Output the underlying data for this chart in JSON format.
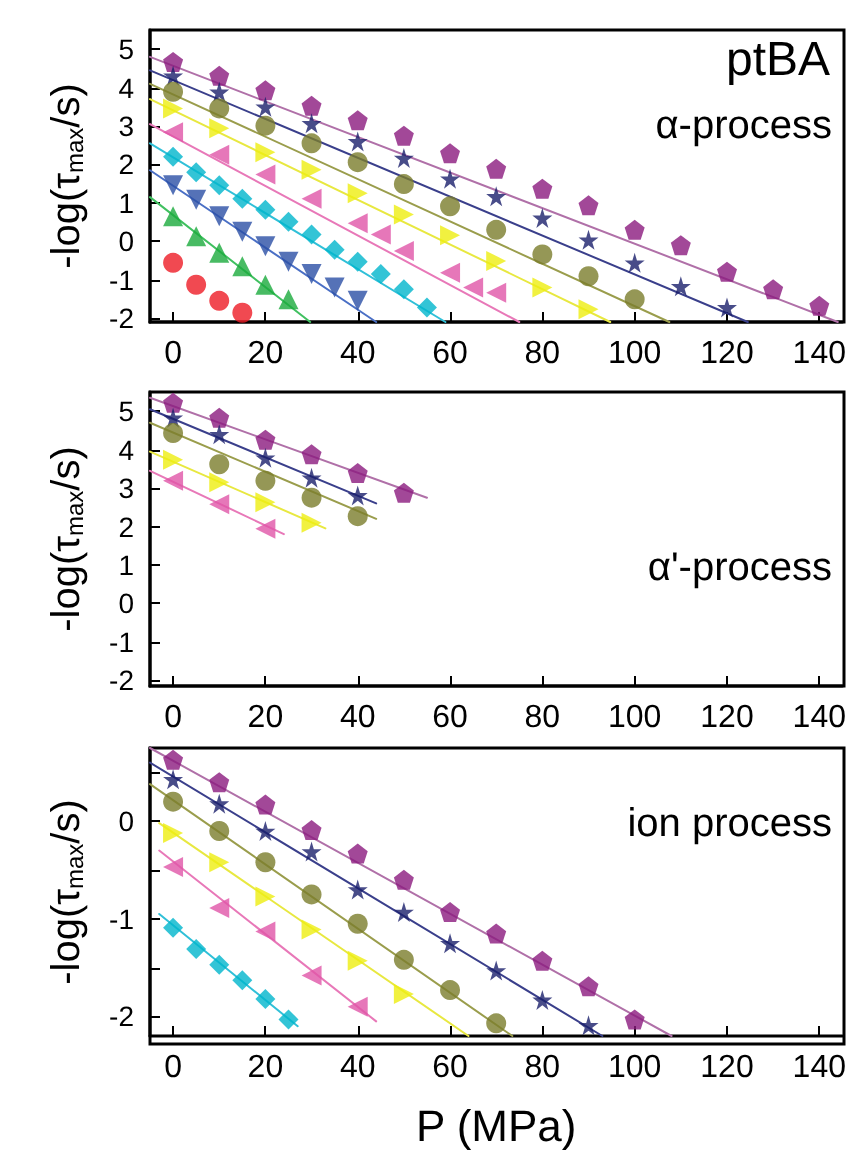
{
  "chart_data": [
    {
      "type": "scatter",
      "title": "ptBA",
      "ylabel": "-log(τ$_{max}$/s)",
      "annotations": [
        "α-process"
      ],
      "xlim": [
        -5,
        145
      ],
      "ylim": [
        -2.1,
        5.5
      ],
      "xticks": [
        0,
        20,
        40,
        60,
        80,
        100,
        120,
        140
      ],
      "yticks": [
        -2,
        -1,
        0,
        1,
        2,
        3,
        4,
        5
      ],
      "grid": false,
      "series": [
        {
          "color": "#8b1a7e",
          "x": [
            0,
            10,
            20,
            30,
            40,
            50,
            60,
            70,
            80,
            90,
            100,
            110,
            120,
            130,
            140
          ],
          "values": [
            4.67,
            4.31,
            3.93,
            3.53,
            3.15,
            2.75,
            2.29,
            1.89,
            1.37,
            0.94,
            0.3,
            -0.1,
            -0.79,
            -1.25,
            -1.68
          ]
        },
        {
          "color": "#1a1f6b",
          "marker": "star",
          "x": [
            0,
            10,
            20,
            30,
            40,
            50,
            60,
            70,
            80,
            90,
            100,
            110,
            120
          ],
          "values": [
            4.31,
            3.89,
            3.5,
            3.07,
            2.6,
            2.17,
            1.63,
            1.17,
            0.61,
            0.04,
            -0.56,
            -1.17,
            -1.72
          ]
        },
        {
          "color": "#7a7d2c",
          "marker": "circle",
          "x": [
            0,
            10,
            20,
            30,
            40,
            50,
            60,
            70,
            80,
            90,
            100
          ],
          "values": [
            3.89,
            3.46,
            3.01,
            2.55,
            2.06,
            1.49,
            0.91,
            0.3,
            -0.34,
            -0.91,
            -1.51
          ]
        },
        {
          "color": "#eeee10",
          "marker": "triangle-right",
          "x": [
            0,
            10,
            20,
            30,
            40,
            50,
            60,
            70,
            80,
            90
          ],
          "values": [
            3.46,
            2.94,
            2.32,
            1.86,
            1.25,
            0.7,
            0.16,
            -0.51,
            -1.2,
            -1.77
          ]
        },
        {
          "color": "#e055a8",
          "marker": "triangle-left",
          "x": [
            0,
            10,
            20,
            30,
            40,
            45,
            50,
            60,
            65,
            70
          ],
          "values": [
            2.84,
            2.25,
            1.74,
            1.11,
            0.47,
            0.18,
            -0.25,
            -0.82,
            -1.2,
            -1.34
          ]
        },
        {
          "color": "#00b5cc",
          "marker": "diamond",
          "x": [
            0,
            5,
            10,
            15,
            20,
            25,
            30,
            35,
            40,
            45,
            50,
            55
          ],
          "values": [
            2.2,
            1.8,
            1.46,
            1.11,
            0.82,
            0.51,
            0.18,
            -0.22,
            -0.53,
            -0.85,
            -1.25,
            -1.72
          ]
        },
        {
          "color": "#2a4fa5",
          "marker": "triangle-down",
          "x": [
            0,
            5,
            10,
            15,
            20,
            25,
            30,
            35,
            40
          ],
          "values": [
            1.46,
            1.08,
            0.65,
            0.25,
            -0.13,
            -0.53,
            -0.85,
            -1.2,
            -1.55
          ]
        },
        {
          "color": "#1aaa3c",
          "marker": "triangle",
          "x": [
            0,
            5,
            10,
            15,
            20,
            25
          ],
          "values": [
            0.65,
            0.13,
            -0.3,
            -0.65,
            -1.13,
            -1.51
          ]
        },
        {
          "color": "#ee1c25",
          "marker": "circle",
          "x": [
            0,
            5,
            10,
            15
          ],
          "values": [
            -0.56,
            -1.13,
            -1.55,
            -1.86
          ]
        },
        {
          "type": "line",
          "color": "#b070a8",
          "marker": "none",
          "x": [
            -5,
            144
          ],
          "values": [
            4.8,
            -2.1
          ]
        },
        {
          "type": "line",
          "color": "#3a3f8b",
          "marker": "none",
          "x": [
            -5,
            124.5
          ],
          "values": [
            4.45,
            -2.1
          ]
        },
        {
          "type": "line",
          "color": "#9a9d4c",
          "marker": "none",
          "x": [
            -5,
            107.5
          ],
          "values": [
            4.1,
            -2.1
          ]
        },
        {
          "type": "line",
          "color": "#e8e840",
          "marker": "none",
          "x": [
            -5,
            94.7
          ],
          "values": [
            3.7,
            -2.1
          ]
        },
        {
          "type": "line",
          "color": "#e878b8",
          "marker": "none",
          "x": [
            -5,
            75
          ],
          "values": [
            3.05,
            -2.1
          ]
        },
        {
          "type": "line",
          "color": "#30c0d8",
          "marker": "none",
          "x": [
            -5,
            59
          ],
          "values": [
            2.55,
            -2.1
          ]
        },
        {
          "type": "line",
          "color": "#4a6fc5",
          "marker": "none",
          "x": [
            -5,
            44
          ],
          "values": [
            1.85,
            -2.1
          ]
        },
        {
          "type": "line",
          "color": "#40c060",
          "marker": "none",
          "x": [
            -5,
            29.7
          ],
          "values": [
            1.15,
            -2.1
          ]
        }
      ]
    },
    {
      "type": "scatter",
      "ylabel": "-log(τ$_{max}$/s)",
      "annotations": [
        "α'-process"
      ],
      "xlim": [
        -5,
        145
      ],
      "ylim": [
        -2.15,
        5.5
      ],
      "xticks": [
        0,
        20,
        40,
        60,
        80,
        100,
        120,
        140
      ],
      "yticks": [
        -2,
        -1,
        0,
        1,
        2,
        3,
        4,
        5
      ],
      "grid": false,
      "series": [
        {
          "color": "#8b1a7e",
          "x": [
            0,
            10,
            20,
            30,
            40,
            50
          ],
          "values": [
            5.22,
            4.83,
            4.26,
            3.88,
            3.39,
            2.88
          ]
        },
        {
          "color": "#1a1f6b",
          "marker": "star",
          "x": [
            0,
            10,
            20,
            30,
            40
          ],
          "values": [
            4.83,
            4.4,
            3.79,
            3.27,
            2.81
          ]
        },
        {
          "color": "#7a7d2c",
          "marker": "circle",
          "x": [
            0,
            10,
            20,
            30,
            40
          ],
          "values": [
            4.43,
            3.62,
            3.19,
            2.75,
            2.27
          ]
        },
        {
          "color": "#eeee10",
          "marker": "triangle-right",
          "x": [
            0,
            10,
            20,
            30
          ],
          "values": [
            3.74,
            3.15,
            2.63,
            2.1
          ]
        },
        {
          "color": "#e055a8",
          "marker": "triangle-left",
          "x": [
            0,
            10,
            20
          ],
          "values": [
            3.19,
            2.58,
            1.94
          ]
        },
        {
          "type": "line",
          "color": "#b070a8",
          "marker": "none",
          "x": [
            -5,
            55
          ],
          "values": [
            5.35,
            2.75
          ]
        },
        {
          "type": "line",
          "color": "#3a3f8b",
          "marker": "none",
          "x": [
            -5,
            44
          ],
          "values": [
            5.05,
            2.6
          ]
        },
        {
          "type": "line",
          "color": "#9a9d4c",
          "marker": "none",
          "x": [
            -5,
            44
          ],
          "values": [
            4.7,
            2.2
          ]
        },
        {
          "type": "line",
          "color": "#e8e840",
          "marker": "none",
          "x": [
            -5,
            33
          ],
          "values": [
            3.95,
            1.95
          ]
        },
        {
          "type": "line",
          "color": "#e878b8",
          "marker": "none",
          "x": [
            -5,
            24
          ],
          "values": [
            3.45,
            1.8
          ]
        }
      ]
    },
    {
      "type": "scatter",
      "ylabel": "-log(τ$_{max}$/s)",
      "xlabel": "P (MPa)",
      "annotations": [
        "ion process"
      ],
      "xlim": [
        -5,
        145
      ],
      "ylim": [
        -2.2,
        0.75
      ],
      "xticks": [
        0,
        20,
        40,
        60,
        80,
        100,
        120,
        140
      ],
      "yticks": [
        -2,
        {
          "value": -1.5,
          "label": null
        },
        -1,
        {
          "value": -0.5,
          "label": null
        },
        0,
        {
          "value": 0.5,
          "label": null
        }
      ],
      "grid": false,
      "series": [
        {
          "color": "#8b1a7e",
          "x": [
            0,
            10,
            20,
            30,
            40,
            50,
            60,
            70,
            80,
            90,
            100
          ],
          "values": [
            0.63,
            0.4,
            0.17,
            -0.09,
            -0.33,
            -0.6,
            -0.93,
            -1.15,
            -1.43,
            -1.69,
            -2.03
          ]
        },
        {
          "color": "#1a1f6b",
          "marker": "star",
          "x": [
            0,
            10,
            20,
            30,
            40,
            50,
            60,
            70,
            80,
            90
          ],
          "values": [
            0.43,
            0.18,
            -0.1,
            -0.31,
            -0.7,
            -0.93,
            -1.25,
            -1.53,
            -1.83,
            -2.09
          ]
        },
        {
          "color": "#7a7d2c",
          "marker": "circle",
          "x": [
            0,
            10,
            20,
            30,
            40,
            50,
            60,
            70
          ],
          "values": [
            0.2,
            -0.1,
            -0.42,
            -0.75,
            -1.05,
            -1.42,
            -1.73,
            -2.07
          ]
        },
        {
          "color": "#eeee10",
          "marker": "triangle-right",
          "x": [
            0,
            10,
            20,
            30,
            40,
            50
          ],
          "values": [
            -0.12,
            -0.42,
            -0.77,
            -1.11,
            -1.43,
            -1.77
          ]
        },
        {
          "color": "#e055a8",
          "marker": "triangle-left",
          "x": [
            0,
            10,
            20,
            30,
            40
          ],
          "values": [
            -0.47,
            -0.89,
            -1.13,
            -1.58,
            -1.9
          ]
        },
        {
          "color": "#00b5cc",
          "marker": "diamond",
          "x": [
            0,
            5,
            10,
            15,
            20,
            25
          ],
          "values": [
            -1.09,
            -1.31,
            -1.47,
            -1.63,
            -1.82,
            -2.03
          ]
        },
        {
          "type": "line",
          "color": "#b070a8",
          "marker": "none",
          "x": [
            -5,
            108
          ],
          "values": [
            0.75,
            -2.2
          ]
        },
        {
          "type": "line",
          "color": "#3a3f8b",
          "marker": "none",
          "x": [
            -5,
            93
          ],
          "values": [
            0.6,
            -2.2
          ]
        },
        {
          "type": "line",
          "color": "#9a9d4c",
          "marker": "none",
          "x": [
            -5,
            73.5
          ],
          "values": [
            0.38,
            -2.2
          ]
        },
        {
          "type": "line",
          "color": "#e8e840",
          "marker": "none",
          "x": [
            -3,
            64
          ],
          "values": [
            -0.02,
            -2.2
          ]
        },
        {
          "type": "line",
          "color": "#e878b8",
          "marker": "none",
          "x": [
            -3,
            44
          ],
          "values": [
            -0.3,
            -2.05
          ]
        },
        {
          "type": "line",
          "color": "#30c0d8",
          "marker": "none",
          "x": [
            -3,
            27
          ],
          "values": [
            -0.95,
            -2.1
          ]
        }
      ]
    }
  ]
}
